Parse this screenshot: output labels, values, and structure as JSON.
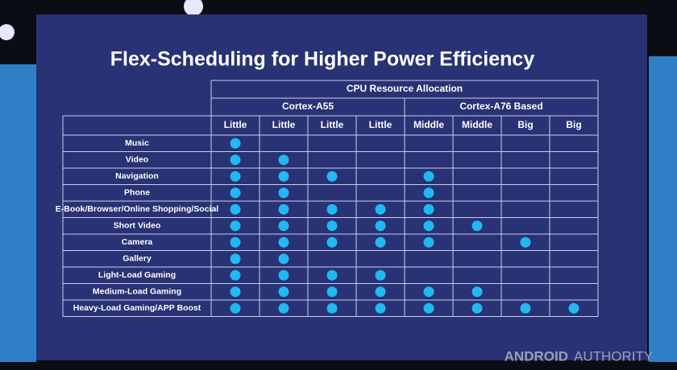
{
  "slide": {
    "title": "Flex-Scheduling for Higher Power Efficiency",
    "table": {
      "super_header": "CPU Resource Allocation",
      "groups": [
        {
          "label": "Cortex-A55",
          "span": 4
        },
        {
          "label": "Cortex-A76 Based",
          "span": 4
        }
      ],
      "columns": [
        "Little",
        "Little",
        "Little",
        "Little",
        "Middle",
        "Middle",
        "Big",
        "Big"
      ],
      "rows": [
        {
          "label": "Music",
          "cells": [
            true,
            false,
            false,
            false,
            false,
            false,
            false,
            false
          ]
        },
        {
          "label": "Video",
          "cells": [
            true,
            true,
            false,
            false,
            false,
            false,
            false,
            false
          ]
        },
        {
          "label": "Navigation",
          "cells": [
            true,
            true,
            true,
            false,
            true,
            false,
            false,
            false
          ]
        },
        {
          "label": "Phone",
          "cells": [
            true,
            true,
            false,
            false,
            true,
            false,
            false,
            false
          ]
        },
        {
          "label": "E-Book/Browser/Online Shopping/Social",
          "cells": [
            true,
            true,
            true,
            true,
            true,
            false,
            false,
            false
          ]
        },
        {
          "label": "Short Video",
          "cells": [
            true,
            true,
            true,
            true,
            true,
            true,
            false,
            false
          ]
        },
        {
          "label": "Camera",
          "cells": [
            true,
            true,
            true,
            true,
            true,
            false,
            true,
            false
          ]
        },
        {
          "label": "Gallery",
          "cells": [
            true,
            true,
            false,
            false,
            false,
            false,
            false,
            false
          ]
        },
        {
          "label": "Light-Load Gaming",
          "cells": [
            true,
            true,
            true,
            true,
            false,
            false,
            false,
            false
          ]
        },
        {
          "label": "Medium-Load Gaming",
          "cells": [
            true,
            true,
            true,
            true,
            true,
            true,
            false,
            false
          ]
        },
        {
          "label": "Heavy-Load Gaming/APP Boost",
          "cells": [
            true,
            true,
            true,
            true,
            true,
            true,
            true,
            true
          ]
        }
      ]
    }
  },
  "watermark": [
    "ANDROID",
    "AUTHORITY"
  ]
}
